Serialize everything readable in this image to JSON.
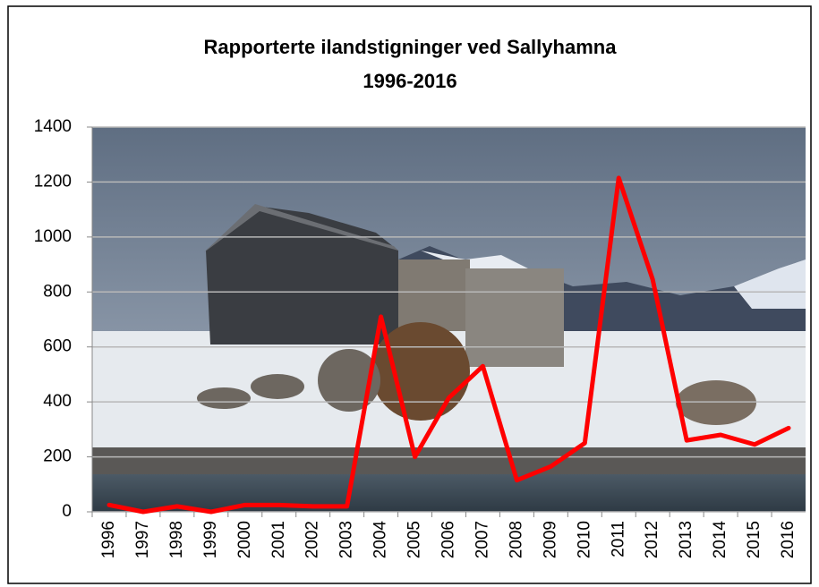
{
  "chart_data": {
    "type": "line",
    "title": "Rapporterte ilandstigninger ved Sallyhamna",
    "subtitle": "1996-2016",
    "categories": [
      "1996",
      "1997",
      "1998",
      "1999",
      "2000",
      "2001",
      "2002",
      "2003",
      "2004",
      "2005",
      "2006",
      "2007",
      "2008",
      "2009",
      "2010",
      "2011",
      "2012",
      "2013",
      "2014",
      "2015",
      "2016"
    ],
    "values": [
      25,
      0,
      20,
      0,
      25,
      25,
      20,
      20,
      710,
      200,
      415,
      530,
      115,
      165,
      250,
      1215,
      845,
      260,
      280,
      245,
      305
    ],
    "color": "#ff0000",
    "ylim": [
      0,
      1400
    ],
    "yticks": [
      0,
      200,
      400,
      600,
      800,
      1000,
      1200,
      1400
    ],
    "grid": true
  }
}
